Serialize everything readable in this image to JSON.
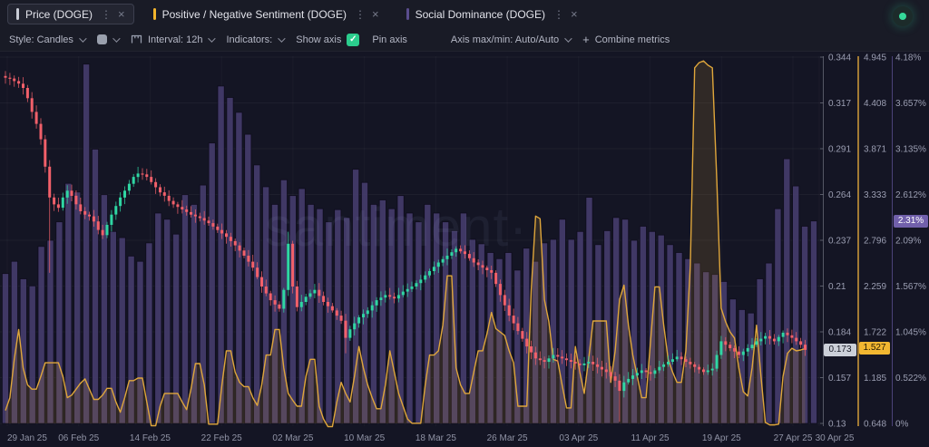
{
  "tabs": [
    {
      "label": "Price (DOGE)",
      "accent": "#c9ccd6"
    },
    {
      "label": "Positive / Negative Sentiment (DOGE)",
      "accent": "#f2b42c"
    },
    {
      "label": "Social Dominance (DOGE)",
      "accent": "#5a4d8e"
    }
  ],
  "icons": {
    "kebab": "⋮",
    "close": "×",
    "check": "✓",
    "plus": "+"
  },
  "toolbar": {
    "style_label": "Style: Candles",
    "interval_label": "Interval: 12h",
    "indicators_label": "Indicators:",
    "show_axis_label": "Show axis",
    "pin_axis_label": "Pin axis",
    "axis_maxmin_label": "Axis max/min: Auto/Auto",
    "combine_label": "Combine metrics"
  },
  "watermark": "santiment·",
  "badges": {
    "price": "0.173",
    "sentiment": "1.527",
    "dominance": "2.31%"
  },
  "colors": {
    "candle_up": "#2fd6a3",
    "candle_down": "#f2606a",
    "sentiment_line": "#dfa63b",
    "dominance_bar": "#473e6e",
    "price_axis": "#8b8e9b",
    "tick_text": "#9b9eb2",
    "date_text": "#8f92a4"
  },
  "chart_data": {
    "type": "candlestick+line+bar",
    "x_range": [
      "29 Jan 25",
      "30 Apr 25"
    ],
    "x_labels": [
      "29 Jan 25",
      "06 Feb 25",
      "14 Feb 25",
      "22 Feb 25",
      "02 Mar 25",
      "10 Mar 25",
      "18 Mar 25",
      "26 Mar 25",
      "03 Apr 25",
      "11 Apr 25",
      "19 Apr 25",
      "27 Apr 25",
      "30 Apr 25"
    ],
    "series": [
      {
        "name": "Price (DOGE)",
        "type": "candlestick",
        "interval": "12h",
        "axis": {
          "ticks": [
            0.344,
            0.317,
            0.291,
            0.264,
            0.237,
            0.21,
            0.184,
            0.157,
            0.13
          ],
          "current": 0.173
        },
        "closes": [
          0.332,
          0.3315,
          0.33,
          0.3285,
          0.326,
          0.32,
          0.312,
          0.305,
          0.296,
          0.28,
          0.262,
          0.258,
          0.256,
          0.262,
          0.266,
          0.263,
          0.258,
          0.254,
          0.252,
          0.251,
          0.248,
          0.243,
          0.24,
          0.246,
          0.252,
          0.257,
          0.262,
          0.266,
          0.27,
          0.274,
          0.276,
          0.2755,
          0.274,
          0.271,
          0.268,
          0.265,
          0.263,
          0.26,
          0.258,
          0.2565,
          0.255,
          0.2535,
          0.252,
          0.251,
          0.25,
          0.2485,
          0.247,
          0.245,
          0.243,
          0.241,
          0.239,
          0.2365,
          0.234,
          0.231,
          0.228,
          0.2245,
          0.221,
          0.2155,
          0.21,
          0.206,
          0.202,
          0.1995,
          0.197,
          0.208,
          0.235,
          0.21,
          0.198,
          0.201,
          0.204,
          0.206,
          0.208,
          0.2045,
          0.201,
          0.1985,
          0.196,
          0.193,
          0.19,
          0.18,
          0.185,
          0.1885,
          0.192,
          0.194,
          0.196,
          0.199,
          0.202,
          0.2035,
          0.205,
          0.204,
          0.203,
          0.205,
          0.207,
          0.2085,
          0.21,
          0.212,
          0.214,
          0.2165,
          0.219,
          0.2215,
          0.224,
          0.226,
          0.228,
          0.23,
          0.232,
          0.2305,
          0.229,
          0.2265,
          0.224,
          0.2225,
          0.221,
          0.2195,
          0.218,
          0.2115,
          0.205,
          0.199,
          0.193,
          0.1885,
          0.184,
          0.1795,
          0.175,
          0.1715,
          0.168,
          0.167,
          0.166,
          0.168,
          0.17,
          0.169,
          0.168,
          0.167,
          0.166,
          0.165,
          0.164,
          0.165,
          0.166,
          0.1645,
          0.163,
          0.1615,
          0.16,
          0.1575,
          0.155,
          0.149,
          0.154,
          0.156,
          0.158,
          0.1595,
          0.161,
          0.16,
          0.159,
          0.161,
          0.163,
          0.1645,
          0.166,
          0.1675,
          0.169,
          0.1675,
          0.166,
          0.1645,
          0.163,
          0.1615,
          0.16,
          0.161,
          0.162,
          0.17,
          0.178,
          0.176,
          0.174,
          0.172,
          0.17,
          0.172,
          0.174,
          0.176,
          0.178,
          0.1795,
          0.181,
          0.1795,
          0.178,
          0.1805,
          0.183,
          0.1815,
          0.18,
          0.178,
          0.176,
          0.173
        ],
        "wick_overrides": {
          "10": {
            "l": 0.218
          },
          "64": {
            "h": 0.242
          },
          "77": {
            "l": 0.171
          },
          "139": {
            "l": 0.131
          }
        }
      },
      {
        "name": "Positive / Negative Sentiment (DOGE)",
        "type": "step-area",
        "axis": {
          "ticks": [
            4.945,
            4.408,
            3.871,
            3.333,
            2.796,
            2.259,
            1.722,
            1.185,
            0.648
          ],
          "current": 1.527
        },
        "values": [
          0.8,
          0.95,
          1.4,
          1.75,
          1.3,
          1.1,
          1.05,
          1.05,
          1.2,
          1.36,
          1.36,
          1.36,
          1.36,
          1.2,
          0.95,
          0.98,
          1.05,
          1.12,
          1.17,
          1.05,
          0.93,
          0.93,
          0.98,
          1.06,
          1.06,
          0.9,
          0.78,
          0.95,
          1.15,
          1.15,
          1.18,
          1.18,
          0.9,
          0.62,
          0.62,
          0.85,
          1.0,
          1.0,
          1.0,
          1.0,
          0.9,
          0.81,
          1.05,
          1.35,
          1.35,
          1.1,
          0.64,
          0.64,
          0.64,
          1.1,
          1.5,
          1.5,
          1.25,
          1.13,
          1.08,
          1.08,
          0.95,
          0.86,
          1.1,
          1.45,
          1.45,
          1.75,
          1.75,
          1.3,
          1.0,
          0.92,
          0.85,
          0.85,
          1.2,
          1.4,
          1.4,
          0.85,
          0.7,
          0.61,
          0.61,
          0.9,
          1.13,
          1.0,
          0.9,
          1.2,
          1.55,
          1.3,
          1.1,
          0.95,
          0.82,
          0.82,
          1.1,
          1.5,
          1.25,
          1.0,
          0.85,
          0.7,
          0.65,
          0.65,
          0.65,
          1.1,
          1.45,
          1.45,
          1.5,
          1.8,
          2.38,
          2.38,
          1.3,
          1.1,
          1.0,
          1.0,
          1.25,
          1.5,
          1.5,
          1.7,
          1.95,
          1.76,
          1.72,
          1.68,
          1.5,
          1.36,
          0.85,
          0.85,
          0.85,
          2.2,
          3.08,
          3.05,
          2.1,
          1.84,
          1.4,
          1.38,
          1.1,
          0.83,
          0.83,
          1.55,
          1.25,
          1.0,
          1.4,
          1.85,
          1.85,
          1.85,
          1.85,
          1.13,
          1.5,
          2.1,
          2.27,
          1.8,
          1.45,
          1.2,
          0.95,
          0.95,
          1.6,
          2.25,
          2.25,
          1.8,
          1.4,
          1.25,
          1.13,
          1.13,
          1.5,
          2.5,
          4.82,
          4.88,
          4.9,
          4.85,
          4.82,
          3.5,
          2.0,
          1.84,
          1.72,
          1.65,
          1.3,
          1.02,
          0.97,
          1.3,
          1.8,
          1.2,
          0.66,
          0.63,
          0.63,
          0.64,
          1.2,
          1.47,
          1.53,
          1.5,
          1.51,
          1.527
        ]
      },
      {
        "name": "Social Dominance (DOGE)",
        "type": "bar",
        "unit": "%",
        "axis": {
          "ticks": [
            "4.18%",
            "3.657%",
            "3.135%",
            "2.612%",
            "2.09%",
            "1.567%",
            "1.045%",
            "0.522%",
            "0%"
          ],
          "max": 4.18,
          "current": "2.31%"
        },
        "values": [
          1.71,
          1.85,
          1.65,
          1.57,
          2.02,
          2.09,
          2.3,
          2.74,
          2.64,
          4.1,
          3.13,
          2.61,
          2.19,
          2.12,
          1.91,
          1.85,
          2.06,
          2.4,
          2.33,
          2.16,
          2.61,
          2.5,
          2.72,
          3.2,
          3.85,
          3.72,
          3.55,
          3.3,
          2.95,
          2.7,
          2.5,
          2.78,
          2.6,
          2.68,
          2.5,
          2.45,
          2.3,
          2.44,
          2.35,
          2.9,
          2.75,
          2.5,
          2.55,
          2.45,
          2.6,
          2.4,
          2.3,
          2.5,
          2.4,
          2.3,
          2.2,
          2.4,
          2.1,
          2.05,
          1.95,
          1.88,
          1.95,
          1.75,
          2.0,
          1.85,
          2.06,
          2.1,
          2.33,
          2.1,
          2.19,
          2.58,
          2.04,
          2.2,
          2.35,
          2.33,
          2.09,
          2.25,
          2.19,
          2.15,
          2.04,
          1.95,
          1.88,
          1.83,
          1.73,
          1.7,
          1.62,
          1.42,
          1.3,
          1.26,
          1.65,
          1.83,
          2.45,
          3.02,
          2.71,
          2.25,
          2.31
        ]
      }
    ]
  }
}
